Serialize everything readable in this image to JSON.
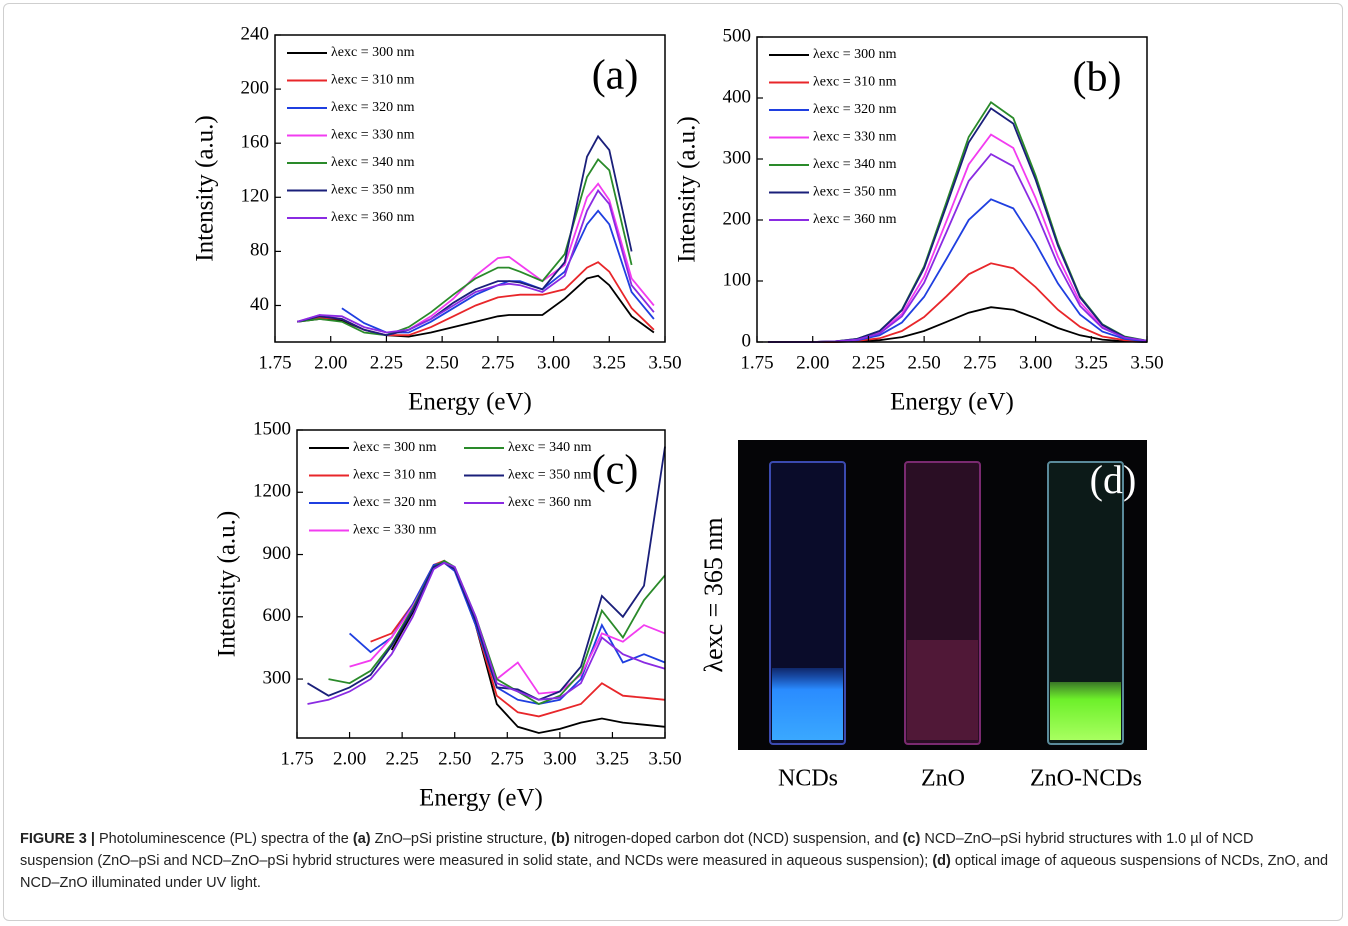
{
  "chart_data": [
    {
      "type": "line",
      "annotation": "(a)",
      "xlabel": "Energy (eV)",
      "ylabel": "Intensity (a.u.)",
      "legend": "upper left",
      "xlim": [
        1.75,
        3.5
      ],
      "xticks": [
        1.75,
        {
          "value": 2,
          "label": "2.00"
        },
        2.25,
        {
          "value": 2.5,
          "label": "2.50"
        },
        2.75,
        {
          "value": 3,
          "label": "3.00"
        },
        3.25,
        {
          "value": 3.5,
          "label": "3.50"
        }
      ],
      "ylim": [
        13,
        240
      ],
      "yticks": [
        40,
        80,
        120,
        160,
        200,
        240
      ],
      "x": [
        1.85,
        1.95,
        2.05,
        2.15,
        2.25,
        2.35,
        2.45,
        2.55,
        2.65,
        2.75,
        2.8,
        2.85,
        2.95,
        3.05,
        3.15,
        3.2,
        3.25,
        3.35,
        3.45
      ],
      "series": [
        {
          "name": "λexc = 300 nm",
          "color": "#000000",
          "values": [
            28,
            30,
            29,
            22,
            18,
            17,
            20,
            24,
            28,
            32,
            33,
            33,
            33,
            45,
            60,
            62,
            55,
            32,
            20
          ]
        },
        {
          "name": "λexc = 310 nm",
          "color": "#e8262a",
          "values": [
            28,
            31,
            30,
            22,
            18,
            18,
            24,
            32,
            40,
            46,
            47,
            48,
            48,
            52,
            68,
            72,
            65,
            38,
            22
          ]
        },
        {
          "name": "λexc = 320 nm",
          "color": "#1f3fe0",
          "values": [
            null,
            null,
            38,
            27,
            20,
            20,
            28,
            38,
            48,
            55,
            58,
            58,
            52,
            65,
            100,
            110,
            100,
            50,
            30
          ]
        },
        {
          "name": "λexc = 330 nm",
          "color": "#f23cf0",
          "values": [
            28,
            33,
            30,
            22,
            18,
            22,
            32,
            45,
            62,
            75,
            76,
            70,
            58,
            70,
            120,
            130,
            118,
            60,
            40
          ]
        },
        {
          "name": "λexc = 340 nm",
          "color": "#2a8a2a",
          "values": [
            28,
            30,
            28,
            20,
            18,
            24,
            35,
            48,
            60,
            68,
            68,
            65,
            58,
            78,
            135,
            148,
            140,
            70,
            null
          ]
        },
        {
          "name": "λexc = 350 nm",
          "color": "#1a1f7a",
          "values": [
            28,
            32,
            30,
            22,
            18,
            22,
            30,
            42,
            52,
            58,
            58,
            57,
            52,
            72,
            150,
            165,
            155,
            80,
            null
          ]
        },
        {
          "name": "λexc = 360 nm",
          "color": "#8a2be2",
          "values": [
            28,
            33,
            32,
            24,
            20,
            22,
            30,
            40,
            50,
            55,
            56,
            55,
            50,
            62,
            110,
            125,
            115,
            55,
            35
          ]
        }
      ]
    },
    {
      "type": "line",
      "annotation": "(b)",
      "xlabel": "Energy (eV)",
      "ylabel": "Intensity (a.u.)",
      "legend": "upper left",
      "xlim": [
        1.75,
        3.5
      ],
      "xticks": [
        1.75,
        {
          "value": 2,
          "label": "2.00"
        },
        2.25,
        {
          "value": 2.5,
          "label": "2.50"
        },
        2.75,
        {
          "value": 3,
          "label": "3.00"
        },
        3.25,
        {
          "value": 3.5,
          "label": "3.50"
        }
      ],
      "ylim": [
        0,
        500
      ],
      "yticks": [
        0,
        100,
        200,
        300,
        400,
        500
      ],
      "x": [
        1.8,
        1.9,
        2.0,
        2.1,
        2.2,
        2.3,
        2.4,
        2.5,
        2.6,
        2.7,
        2.8,
        2.9,
        3.0,
        3.1,
        3.2,
        3.3,
        3.4,
        3.5
      ],
      "series": [
        {
          "name": "λexc = 300 nm",
          "color": "#000000",
          "values": [
            0,
            0,
            0,
            0,
            1,
            3,
            8,
            18,
            33,
            48,
            57,
            53,
            39,
            23,
            11,
            4,
            1,
            0
          ]
        },
        {
          "name": "λexc = 310 nm",
          "color": "#e8262a",
          "values": [
            0,
            0,
            0,
            0,
            2,
            6,
            18,
            41,
            75,
            111,
            129,
            121,
            90,
            53,
            25,
            9,
            3,
            1
          ]
        },
        {
          "name": "λexc = 320 nm",
          "color": "#1f3fe0",
          "values": [
            0,
            0,
            0,
            1,
            3,
            11,
            32,
            74,
            136,
            200,
            234,
            219,
            162,
            96,
            45,
            17,
            5,
            1
          ]
        },
        {
          "name": "λexc = 330 nm",
          "color": "#f23cf0",
          "values": [
            0,
            0,
            0,
            1,
            4,
            16,
            46,
            107,
            198,
            291,
            340,
            318,
            236,
            140,
            65,
            25,
            8,
            2
          ]
        },
        {
          "name": "λexc = 340 nm",
          "color": "#2a8a2a",
          "values": [
            0,
            0,
            0,
            1,
            5,
            18,
            53,
            124,
            229,
            336,
            393,
            367,
            273,
            162,
            75,
            29,
            9,
            2
          ]
        },
        {
          "name": "λexc = 350 nm",
          "color": "#1a1f7a",
          "values": [
            0,
            0,
            0,
            1,
            5,
            18,
            52,
            121,
            223,
            327,
            383,
            358,
            266,
            158,
            73,
            28,
            8,
            2
          ]
        },
        {
          "name": "λexc = 360 nm",
          "color": "#8a2be2",
          "values": [
            0,
            0,
            0,
            1,
            4,
            14,
            42,
            97,
            180,
            264,
            308,
            288,
            214,
            127,
            59,
            23,
            7,
            2
          ]
        }
      ]
    },
    {
      "type": "line",
      "annotation": "(c)",
      "xlabel": "Energy (eV)",
      "ylabel": "Intensity (a.u.)",
      "legend": "upper left",
      "xlim": [
        1.75,
        3.5
      ],
      "xticks": [
        1.75,
        {
          "value": 2,
          "label": "2.00"
        },
        2.25,
        {
          "value": 2.5,
          "label": "2.50"
        },
        2.75,
        {
          "value": 3,
          "label": "3.00"
        },
        3.25,
        {
          "value": 3.5,
          "label": "3.50"
        }
      ],
      "ylim": [
        16,
        1500
      ],
      "yticks": [
        300,
        600,
        900,
        1200,
        1500
      ],
      "x": [
        1.8,
        1.9,
        2.0,
        2.1,
        2.2,
        2.3,
        2.4,
        2.45,
        2.5,
        2.6,
        2.7,
        2.8,
        2.9,
        3.0,
        3.1,
        3.2,
        3.3,
        3.4,
        3.5
      ],
      "series": [
        {
          "name": "λexc = 300 nm",
          "color": "#000000",
          "values": [
            null,
            null,
            null,
            null,
            440,
            620,
            840,
            870,
            830,
            560,
            180,
            70,
            40,
            60,
            90,
            110,
            90,
            80,
            70
          ]
        },
        {
          "name": "λexc = 310 nm",
          "color": "#e8262a",
          "values": [
            null,
            null,
            null,
            480,
            520,
            660,
            850,
            870,
            830,
            560,
            220,
            140,
            120,
            150,
            180,
            280,
            220,
            210,
            200
          ]
        },
        {
          "name": "λexc = 320 nm",
          "color": "#1f3fe0",
          "values": [
            null,
            null,
            520,
            430,
            500,
            660,
            850,
            860,
            820,
            560,
            260,
            200,
            180,
            200,
            300,
            560,
            380,
            420,
            380
          ]
        },
        {
          "name": "λexc = 330 nm",
          "color": "#f23cf0",
          "values": [
            null,
            null,
            360,
            390,
            500,
            650,
            830,
            860,
            830,
            590,
            300,
            380,
            230,
            240,
            320,
            520,
            480,
            560,
            520
          ]
        },
        {
          "name": "λexc = 340 nm",
          "color": "#2a8a2a",
          "values": [
            null,
            300,
            280,
            340,
            470,
            640,
            840,
            870,
            840,
            600,
            300,
            240,
            180,
            220,
            330,
            630,
            500,
            680,
            800
          ]
        },
        {
          "name": "λexc = 350 nm",
          "color": "#1a1f7a",
          "values": [
            280,
            220,
            260,
            320,
            460,
            630,
            840,
            860,
            830,
            580,
            260,
            250,
            200,
            240,
            360,
            700,
            600,
            750,
            1420
          ]
        },
        {
          "name": "λexc = 360 nm",
          "color": "#8a2be2",
          "values": [
            180,
            200,
            240,
            300,
            420,
            600,
            830,
            860,
            840,
            600,
            280,
            240,
            200,
            210,
            280,
            500,
            420,
            380,
            350
          ]
        }
      ]
    }
  ],
  "photo_panel": {
    "label": "(d)",
    "side_label": "λexc = 365 nm",
    "samples": [
      "NCDs",
      "ZnO",
      "ZnO-NCDs"
    ]
  },
  "caption": {
    "segments": [
      {
        "text": "FIGURE 3 |",
        "bold": true
      },
      {
        "text": "Photoluminescence (PL) spectra of the",
        "bold": false
      },
      {
        "text": "(a)",
        "bold": true
      },
      {
        "text": "ZnO–pSi pristine structure,",
        "bold": false
      },
      {
        "text": "(b)",
        "bold": true
      },
      {
        "text": "nitrogen-doped carbon dot (NCD) suspension, and",
        "bold": false
      },
      {
        "text": "(c)",
        "bold": true
      },
      {
        "text": "NCD–ZnO–pSi hybrid structures with 1.0 µl of NCD suspension (ZnO–pSi and NCD–ZnO–pSi hybrid structures were measured in solid state, and NCDs were measured in aqueous suspension);",
        "bold": false
      },
      {
        "text": "(d)",
        "bold": true
      },
      {
        "text": "optical image of aqueous suspensions of NCDs, ZnO, and NCD–ZnO illuminated under UV light.",
        "bold": false
      }
    ]
  }
}
